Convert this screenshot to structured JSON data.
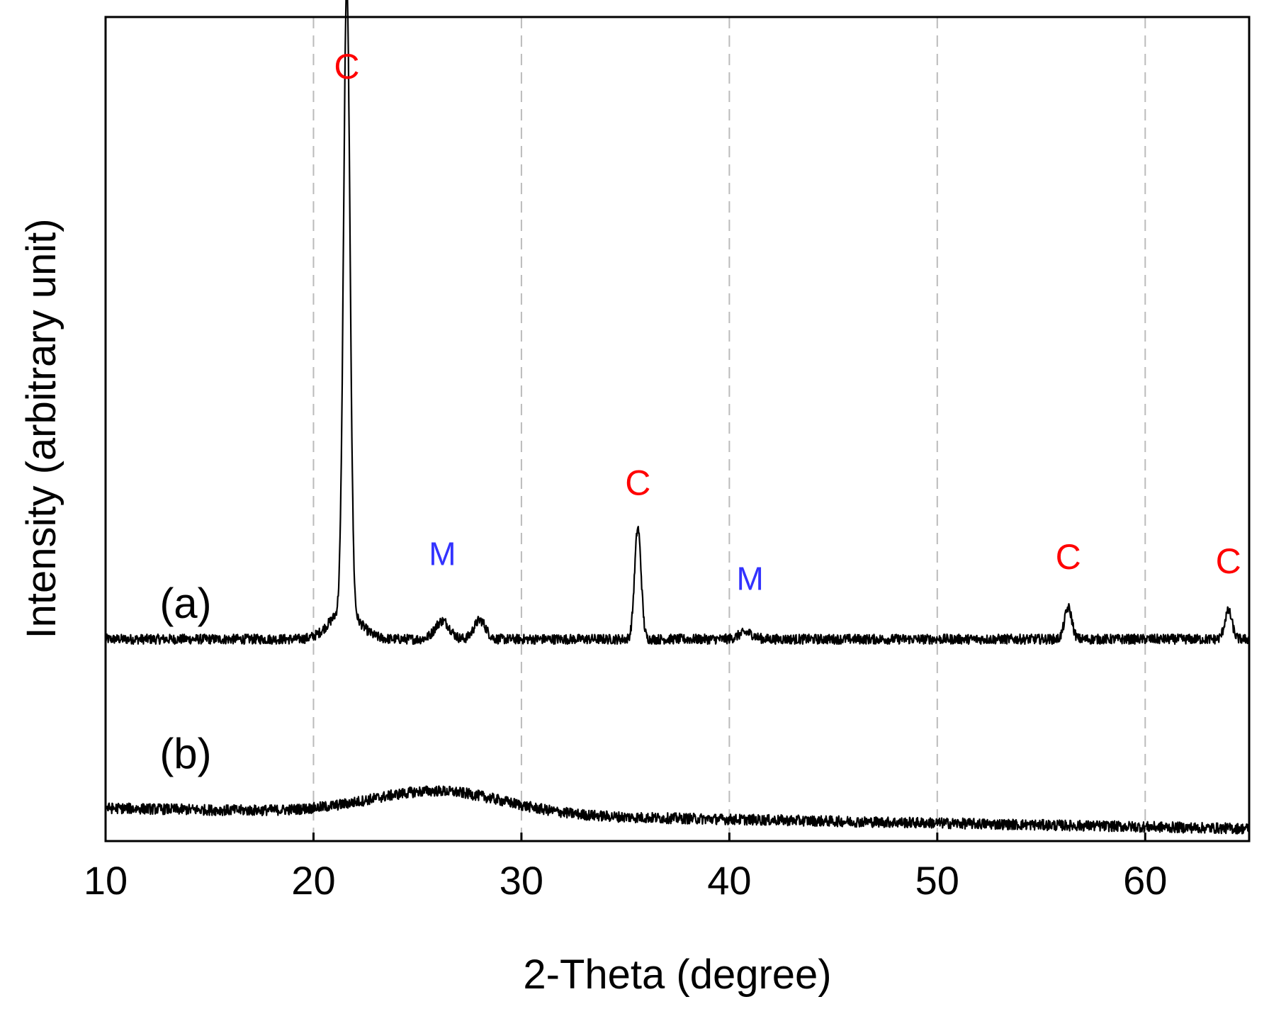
{
  "chart_data": {
    "type": "line",
    "title": "",
    "xlabel": "2-Theta (degree)",
    "ylabel": "Intensity (arbitrary unit)",
    "xlim": [
      10,
      65
    ],
    "ylim": [
      0,
      100
    ],
    "x_ticks": [
      10,
      20,
      30,
      40,
      50,
      60
    ],
    "x_tick_labels": [
      "10",
      "20",
      "30",
      "40",
      "50",
      "60"
    ],
    "y_ticks_shown": false,
    "grid": {
      "x": "dashed-vertical",
      "y": "none"
    },
    "series": [
      {
        "name": "(a)",
        "label": "(a)",
        "baseline": 24.5,
        "noise": 0.6,
        "features": [
          {
            "type": "peak",
            "x": 21.6,
            "height": 76,
            "width": 0.22
          },
          {
            "type": "peak",
            "x": 21.5,
            "height": 3.5,
            "width": 1.0
          },
          {
            "type": "peak",
            "x": 26.2,
            "height": 2.2,
            "width": 0.5
          },
          {
            "type": "peak",
            "x": 28.0,
            "height": 2.3,
            "width": 0.4
          },
          {
            "type": "peak",
            "x": 35.6,
            "height": 13.5,
            "width": 0.22
          },
          {
            "type": "peak",
            "x": 40.8,
            "height": 0.8,
            "width": 0.5
          },
          {
            "type": "peak",
            "x": 56.3,
            "height": 3.8,
            "width": 0.25
          },
          {
            "type": "peak",
            "x": 64.0,
            "height": 3.4,
            "width": 0.25
          }
        ]
      },
      {
        "name": "(b)",
        "label": "(b)",
        "baseline": 4.0,
        "noise": 0.65,
        "features": [
          {
            "type": "hump",
            "x": 26.0,
            "height": 2.8,
            "width": 4.5
          },
          {
            "type": "slope",
            "from_x": 10,
            "to_x": 65,
            "drop": 2.5
          }
        ]
      }
    ],
    "annotations": [
      {
        "text": "C",
        "x": 21.6,
        "y": 92.5,
        "phase": "C",
        "color": "#ff0000"
      },
      {
        "text": "M",
        "x": 26.2,
        "y": 33.5,
        "phase": "M",
        "color": "#3333ff"
      },
      {
        "text": "C",
        "x": 35.6,
        "y": 42.0,
        "phase": "C",
        "color": "#ff0000"
      },
      {
        "text": "M",
        "x": 41.0,
        "y": 30.5,
        "phase": "M",
        "color": "#3333ff"
      },
      {
        "text": "C",
        "x": 56.3,
        "y": 33.0,
        "phase": "C",
        "color": "#ff0000"
      },
      {
        "text": "C",
        "x": 64.0,
        "y": 32.5,
        "phase": "C",
        "color": "#ff0000"
      }
    ],
    "colors": {
      "line": "#000000",
      "grid": "#bbbbbb",
      "c_phase": "#ff0000",
      "m_phase": "#3333ff"
    }
  }
}
